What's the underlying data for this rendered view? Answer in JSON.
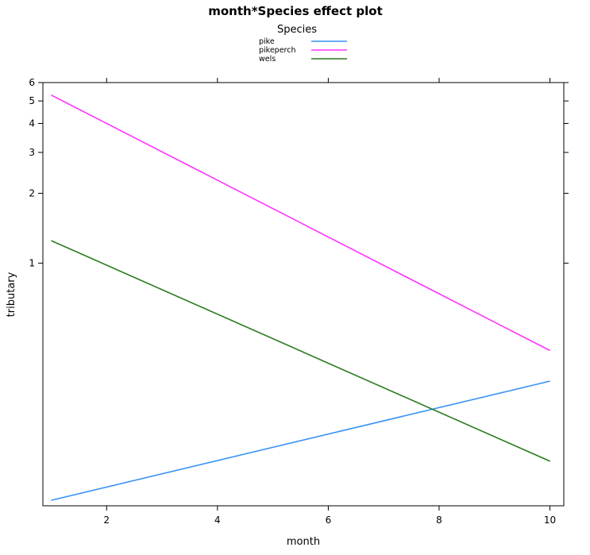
{
  "chart_data": {
    "type": "line",
    "title": "month*Species effect plot",
    "legend_title": "Species",
    "legend_position": "top",
    "xlabel": "month",
    "ylabel": "tributary",
    "xlim": [
      0.85,
      10.25
    ],
    "ylim": [
      0.09,
      6.0
    ],
    "y_scale": "log",
    "x_ticks": [
      2,
      4,
      6,
      8,
      10
    ],
    "y_ticks": [
      1,
      2,
      3,
      4,
      5,
      6
    ],
    "grid": false,
    "series": [
      {
        "name": "pike",
        "color": "#3792F5",
        "x": [
          1,
          10
        ],
        "y": [
          0.095,
          0.31
        ]
      },
      {
        "name": "pikeperch",
        "color": "#FF33FF",
        "x": [
          1,
          10
        ],
        "y": [
          5.3,
          0.42
        ]
      },
      {
        "name": "wels",
        "color": "#2B7A1F",
        "x": [
          1,
          10
        ],
        "y": [
          1.25,
          0.14
        ]
      }
    ]
  }
}
